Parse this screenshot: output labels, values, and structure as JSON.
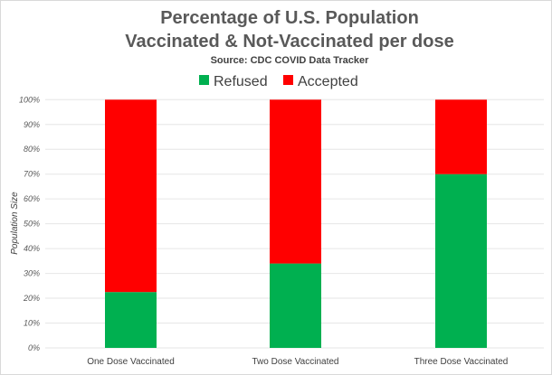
{
  "chart_data": {
    "type": "bar",
    "stacked": true,
    "title_line1": "Percentage of U.S. Population",
    "title_line2": "Vaccinated & Not-Vaccinated per dose",
    "subtitle": "Source: CDC COVID Data Tracker",
    "xlabel": "",
    "ylabel": "Population Size",
    "ylim": [
      0,
      100
    ],
    "yticks": [
      "0%",
      "10%",
      "20%",
      "30%",
      "40%",
      "50%",
      "60%",
      "70%",
      "80%",
      "90%",
      "100%"
    ],
    "categories": [
      "One Dose Vaccinated",
      "Two Dose Vaccinated",
      "Three Dose Vaccinated"
    ],
    "series": [
      {
        "name": "Refused",
        "color": "#00b050",
        "values": [
          22.5,
          34,
          70
        ]
      },
      {
        "name": "Accepted",
        "color": "#ff0000",
        "values": [
          77.5,
          66,
          30
        ]
      }
    ],
    "legend_position": "top",
    "grid": true
  }
}
